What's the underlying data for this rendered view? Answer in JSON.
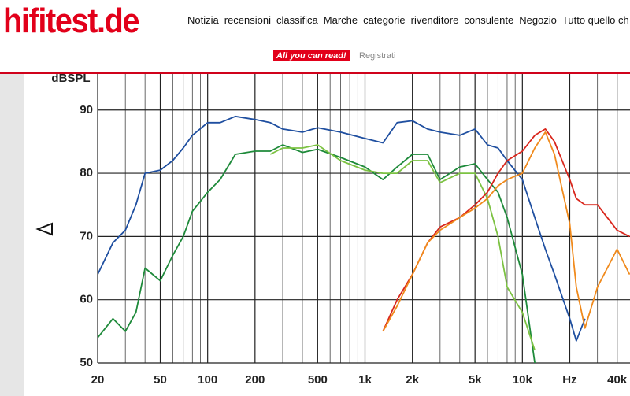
{
  "header": {
    "logo": "hifitest.de",
    "nav": [
      "Notizia",
      "recensioni",
      "classifica",
      "Marche",
      "categorie",
      "rivenditore",
      "consulente",
      "Negozio",
      "Tutto quello ch"
    ],
    "badge": "All you can read!",
    "register": "Registrati"
  },
  "chart_data": {
    "type": "line",
    "y_label": "dBSPL",
    "log_x": true,
    "grid": true,
    "xlim": [
      20,
      50000
    ],
    "ylim": [
      50,
      96
    ],
    "xticks": [
      20,
      50,
      100,
      200,
      500,
      {
        "value": 1000,
        "label": "1k"
      },
      {
        "value": 2000,
        "label": "2k"
      },
      {
        "value": 5000,
        "label": "5k"
      },
      {
        "value": 10000,
        "label": "10k"
      },
      {
        "value": 20000,
        "label": "Hz"
      },
      {
        "value": 40000,
        "label": "40k"
      }
    ],
    "xminor": [
      30,
      40,
      60,
      70,
      80,
      90,
      300,
      400,
      600,
      700,
      800,
      900,
      3000,
      4000,
      6000,
      7000,
      8000,
      9000,
      30000
    ],
    "yticks": [
      50,
      60,
      70,
      80,
      90
    ],
    "x": [
      20,
      25,
      30,
      35,
      40,
      50,
      60,
      70,
      80,
      100,
      120,
      150,
      200,
      250,
      300,
      400,
      500,
      700,
      1000,
      1300,
      1600,
      2000,
      2500,
      3000,
      4000,
      5000,
      6000,
      7000,
      8000,
      10000,
      12000,
      14000,
      16000,
      20000,
      22000,
      25000,
      30000,
      40000,
      48000
    ],
    "series": [
      {
        "color": "#1f4fa0",
        "values": [
          64,
          69,
          71,
          75,
          80,
          80.5,
          82,
          84,
          86,
          88,
          88,
          89,
          88.5,
          88,
          87,
          86.5,
          87.2,
          86.5,
          85.5,
          84.8,
          88,
          88.3,
          87,
          86.5,
          86,
          87,
          84.5,
          84,
          82,
          79,
          73,
          68,
          64,
          57,
          53.5,
          57,
          null,
          null,
          null
        ]
      },
      {
        "color": "#1e8a3a",
        "values": [
          54,
          57,
          55,
          58,
          65,
          63,
          67,
          70,
          74,
          77,
          79,
          83,
          83.5,
          83.5,
          84.5,
          83.3,
          83.8,
          82.5,
          81,
          79,
          81,
          83,
          83,
          79,
          81,
          81.5,
          79,
          77,
          73,
          64,
          50,
          null,
          null,
          null,
          null,
          null,
          null,
          null,
          null
        ]
      },
      {
        "color": "#7cc242",
        "values": [
          null,
          null,
          null,
          null,
          null,
          null,
          null,
          null,
          null,
          null,
          null,
          null,
          null,
          83,
          84,
          84,
          84.5,
          82,
          80.5,
          80,
          80,
          82,
          82,
          78.5,
          80,
          80,
          76,
          70,
          62,
          58,
          52,
          null,
          null,
          null,
          null,
          null,
          null,
          null,
          null
        ]
      },
      {
        "color": "#d9261c",
        "values": [
          null,
          null,
          null,
          null,
          null,
          null,
          null,
          null,
          null,
          null,
          null,
          null,
          null,
          null,
          null,
          null,
          null,
          null,
          null,
          55,
          60,
          64,
          69,
          71.5,
          73,
          75,
          77,
          80,
          82,
          83.5,
          86,
          87,
          85,
          79,
          76,
          75,
          75,
          71,
          70
        ]
      },
      {
        "color": "#f08a1c",
        "values": [
          null,
          null,
          null,
          null,
          null,
          null,
          null,
          null,
          null,
          null,
          null,
          null,
          null,
          null,
          null,
          null,
          null,
          null,
          null,
          55,
          59,
          64,
          69,
          71,
          73,
          74.5,
          76,
          78,
          79,
          80,
          84,
          86.5,
          83,
          72,
          62,
          55.5,
          62,
          68,
          64
        ]
      }
    ]
  }
}
